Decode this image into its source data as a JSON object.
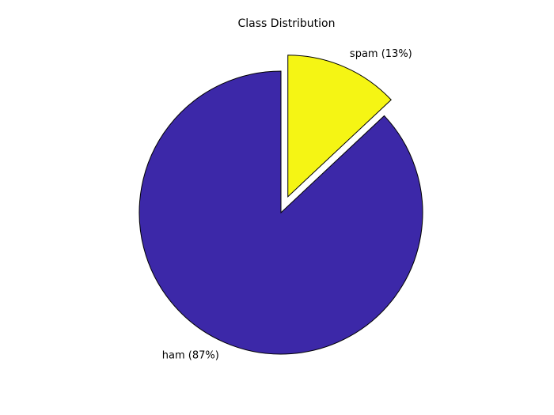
{
  "chart_data": {
    "type": "pie",
    "title": "Class Distribution",
    "slices": [
      {
        "label": "ham (87%)",
        "category": "ham",
        "percent": 87,
        "color": "#3c28a8",
        "exploded": false
      },
      {
        "label": "spam (13%)",
        "category": "spam",
        "percent": 13,
        "color": "#f5f514",
        "exploded": true
      }
    ],
    "edge_color": "#000000"
  }
}
